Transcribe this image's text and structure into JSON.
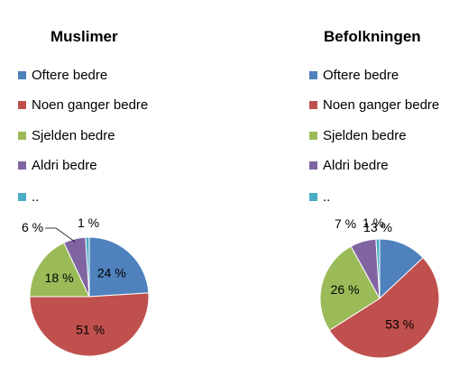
{
  "chart_data": [
    {
      "type": "pie",
      "title": "Muslimer",
      "categories": [
        "Oftere bedre",
        "Noen ganger bedre",
        "Sjelden bedre",
        "Aldri bedre",
        ".."
      ],
      "values": [
        24,
        51,
        18,
        6,
        1
      ],
      "value_labels": [
        "24 %",
        "51 %",
        "18 %",
        "6 %",
        "1 %"
      ],
      "colors": [
        "#4f81bd",
        "#c0504d",
        "#9bbb59",
        "#8064a2",
        "#4bacc6"
      ],
      "legend_position": "top"
    },
    {
      "type": "pie",
      "title": "Befolkningen",
      "categories": [
        "Oftere bedre",
        "Noen ganger bedre",
        "Sjelden bedre",
        "Aldri bedre",
        ".."
      ],
      "values": [
        13,
        53,
        26,
        7,
        1
      ],
      "value_labels": [
        "13 %",
        "53 %",
        "26 %",
        "7 %",
        "1 %"
      ],
      "colors": [
        "#4f81bd",
        "#c0504d",
        "#9bbb59",
        "#8064a2",
        "#4bacc6"
      ],
      "legend_position": "top"
    }
  ]
}
